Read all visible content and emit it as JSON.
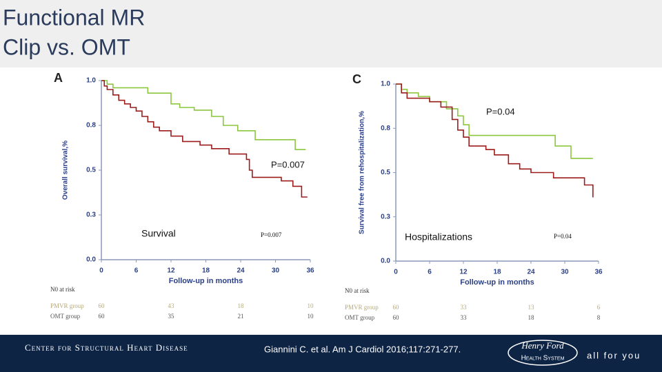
{
  "title_lines": [
    "Functional MR",
    "Clip vs. OMT"
  ],
  "footer": {
    "center": "Center for Structural Heart Disease",
    "citation": "Giannini C. et al. Am J Cardiol 2016;117:271-277.",
    "logo_top": "Henry Ford",
    "logo_bottom": "Health System",
    "tagline": "all for you"
  },
  "chart_data": [
    {
      "type": "step",
      "panel": "A",
      "y_label": "Overall survival,%",
      "x_label": "Follow-up in months",
      "xlim": [
        0,
        36
      ],
      "xticks": [
        0,
        6,
        12,
        18,
        24,
        30,
        36
      ],
      "ylim": [
        0,
        1
      ],
      "yticks": [
        {
          "value": 0,
          "label": "0.0"
        },
        {
          "value": 0.25,
          "label": "0.3"
        },
        {
          "value": 0.5,
          "label": "0.5"
        },
        {
          "value": 0.75,
          "label": "0.8"
        },
        {
          "value": 1,
          "label": "1.0"
        }
      ],
      "series": [
        {
          "name": "PMVR group",
          "color": "#8cc63f",
          "x": [
            0,
            1,
            2,
            8,
            12,
            13.5,
            16,
            19,
            21,
            23.5,
            26.5,
            33.4,
            35.2
          ],
          "values": [
            1,
            0.98,
            0.96,
            0.93,
            0.87,
            0.85,
            0.835,
            0.8,
            0.75,
            0.72,
            0.67,
            0.615,
            0.615
          ]
        },
        {
          "name": "OMT group",
          "color": "#9b1b1b",
          "x": [
            0,
            0.5,
            1,
            2,
            3,
            4,
            5,
            6,
            7,
            8,
            9,
            10,
            12,
            14,
            17,
            19,
            22,
            25,
            25.5,
            26,
            31,
            33,
            34.5,
            35.5
          ],
          "values": [
            1,
            0.97,
            0.95,
            0.92,
            0.89,
            0.87,
            0.85,
            0.83,
            0.8,
            0.77,
            0.74,
            0.72,
            0.69,
            0.66,
            0.64,
            0.62,
            0.59,
            0.56,
            0.5,
            0.46,
            0.44,
            0.41,
            0.35,
            0.35
          ]
        }
      ],
      "risk_table": {
        "title": "N0 at risk",
        "rows": [
          [
            "60",
            "43",
            "18",
            "10"
          ],
          [
            "60",
            "35",
            "21",
            "10"
          ]
        ]
      },
      "annotations": [
        "P=0.007",
        "Survival",
        "P=0.007"
      ]
    },
    {
      "type": "step",
      "panel": "C",
      "y_label": "Survival free from rehospitalization,%",
      "x_label": "Follow-up in months",
      "xlim": [
        0,
        36
      ],
      "xticks": [
        0,
        6,
        12,
        18,
        24,
        30,
        36
      ],
      "ylim": [
        0,
        1
      ],
      "yticks": [
        {
          "value": 0,
          "label": "0.0"
        },
        {
          "value": 0.25,
          "label": "0.3"
        },
        {
          "value": 0.5,
          "label": "0.5"
        },
        {
          "value": 0.75,
          "label": "0.8"
        },
        {
          "value": 1,
          "label": "1.0"
        }
      ],
      "series": [
        {
          "name": "PMVR group",
          "color": "#8cc63f",
          "x": [
            0,
            1,
            2,
            4,
            6,
            9,
            11,
            12,
            13,
            28.3,
            31.1,
            35
          ],
          "values": [
            1,
            0.97,
            0.95,
            0.93,
            0.9,
            0.86,
            0.82,
            0.77,
            0.71,
            0.65,
            0.58,
            0.58
          ]
        },
        {
          "name": "OMT group",
          "color": "#9b1b1b",
          "x": [
            0,
            1,
            2,
            6,
            8,
            10,
            11,
            12,
            13,
            16,
            17.5,
            20,
            22,
            24,
            28,
            33.5,
            35
          ],
          "values": [
            1,
            0.95,
            0.92,
            0.9,
            0.87,
            0.8,
            0.74,
            0.7,
            0.65,
            0.63,
            0.6,
            0.55,
            0.52,
            0.5,
            0.47,
            0.43,
            0.36
          ]
        }
      ],
      "risk_table": {
        "title": "N0 at risk",
        "rows": [
          [
            "60",
            "33",
            "13",
            "6"
          ],
          [
            "60",
            "33",
            "18",
            "8"
          ]
        ]
      },
      "annotations": [
        "P=0.04",
        "Hospitalizations",
        "P=0.04"
      ]
    }
  ]
}
